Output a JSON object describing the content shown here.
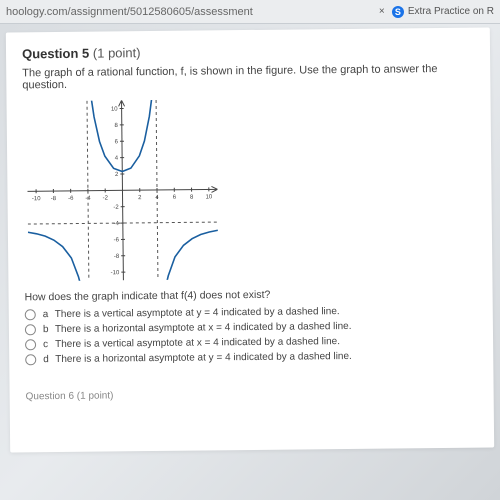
{
  "browser": {
    "url_fragment": "hoology.com/assignment/5012580605/assessment",
    "other_tab": {
      "title": "Extra Practice on R",
      "favicon_letter": "S"
    }
  },
  "question": {
    "number_label": "Question 5",
    "points_label": "(1 point)",
    "stem": "The graph of a rational function, f, is shown in the figure. Use the graph to answer the question.",
    "sub_question": "How does the graph indicate that f(4) does not exist?",
    "choices": [
      {
        "key": "a",
        "text": "There is a vertical asymptote at y = 4 indicated by a dashed line."
      },
      {
        "key": "b",
        "text": "There is a horizontal asymptote at x = 4 indicated by a dashed line."
      },
      {
        "key": "c",
        "text": "There is a vertical asymptote at x = 4 indicated by a dashed line."
      },
      {
        "key": "d",
        "text": "There is a horizontal asymptote at y = 4 indicated by a dashed line."
      }
    ],
    "next_preview": "Question 6 (1 point)"
  },
  "graph": {
    "type": "rational-function-plot",
    "xlim": [
      -11,
      11
    ],
    "ylim": [
      -11,
      11
    ],
    "xtick_step": 2,
    "ytick_step": 2,
    "xtick_labels": [
      "-10",
      "-8",
      "-6",
      "-4",
      "-2",
      "2",
      "4",
      "6",
      "8",
      "10"
    ],
    "ytick_labels": [
      "-10",
      "-8",
      "-6",
      "-4",
      "-2",
      "2",
      "4",
      "6",
      "8",
      "10"
    ],
    "axis_color": "#444444",
    "tick_color": "#444444",
    "curve_color": "#1a5fa0",
    "curve_width": 1.6,
    "asymptote_color": "#555555",
    "asymptote_dash": "3,3",
    "vertical_asymptotes_x": [
      -4,
      4
    ],
    "horizontal_asymptote_y": -4,
    "branches": [
      {
        "region": "left",
        "points": [
          [
            -11,
            -5.0
          ],
          [
            -10,
            -5.2
          ],
          [
            -9,
            -5.5
          ],
          [
            -8,
            -6.0
          ],
          [
            -7,
            -6.8
          ],
          [
            -6,
            -8.2
          ],
          [
            -5.2,
            -10.5
          ],
          [
            -4.6,
            -13
          ]
        ]
      },
      {
        "region": "middle",
        "points": [
          [
            -3.6,
            12
          ],
          [
            -3.2,
            9
          ],
          [
            -2.6,
            6
          ],
          [
            -2,
            4.2
          ],
          [
            -1,
            2.7
          ],
          [
            0,
            2.3
          ],
          [
            1,
            2.7
          ],
          [
            2,
            4.2
          ],
          [
            2.6,
            6
          ],
          [
            3.2,
            9
          ],
          [
            3.6,
            12
          ]
        ]
      },
      {
        "region": "right",
        "points": [
          [
            4.6,
            -13
          ],
          [
            5.2,
            -10.5
          ],
          [
            6,
            -8.2
          ],
          [
            7,
            -6.8
          ],
          [
            8,
            -6.0
          ],
          [
            9,
            -5.5
          ],
          [
            10,
            -5.2
          ],
          [
            11,
            -5.0
          ]
        ]
      }
    ],
    "label_fontsize": 6,
    "background_color": "#ffffff"
  }
}
